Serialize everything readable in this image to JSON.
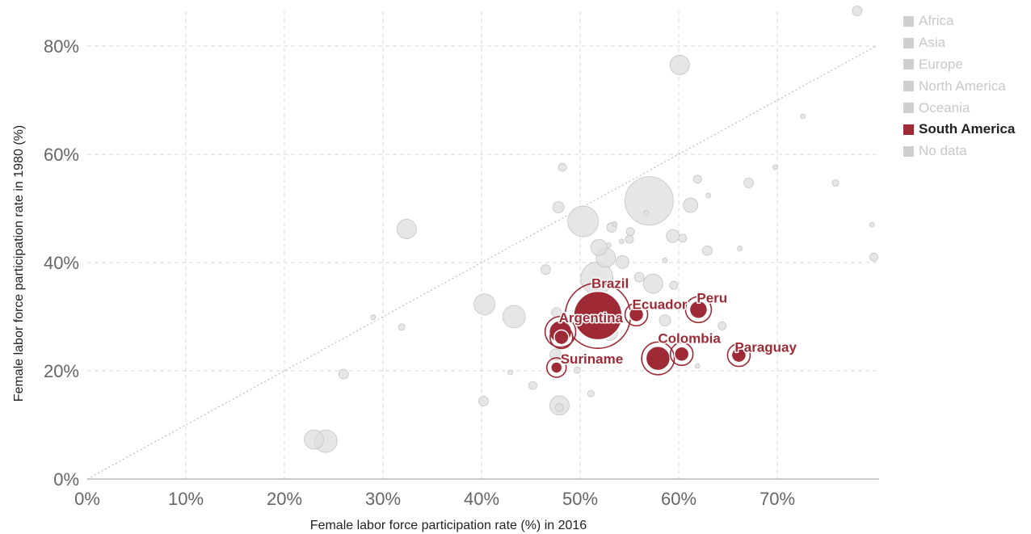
{
  "chart_data": {
    "type": "scatter",
    "xlabel": "Female labor force participation rate (%) in 2016",
    "ylabel": "Female labor force participation rate in 1980 (%)",
    "xlim": [
      0,
      80
    ],
    "ylim": [
      0,
      85
    ],
    "x_ticks": [
      0,
      10,
      20,
      30,
      40,
      50,
      60,
      70
    ],
    "x_tick_labels": [
      "0%",
      "10%",
      "20%",
      "30%",
      "40%",
      "50%",
      "60%",
      "70%"
    ],
    "y_ticks": [
      0,
      20,
      40,
      60,
      80
    ],
    "y_tick_labels": [
      "0%",
      "20%",
      "40%",
      "60%",
      "80%"
    ],
    "grid": true,
    "reference_line": "y = x",
    "legend": {
      "placement": "right",
      "items": [
        {
          "label": "Africa",
          "active": false
        },
        {
          "label": "Asia",
          "active": false
        },
        {
          "label": "Europe",
          "active": false
        },
        {
          "label": "North America",
          "active": false
        },
        {
          "label": "Oceania",
          "active": false
        },
        {
          "label": "South America",
          "active": true
        },
        {
          "label": "No data",
          "active": false
        }
      ]
    },
    "colors": {
      "highlight": "#9e2a35",
      "muted": "#dddddd"
    },
    "highlighted_series": {
      "name": "South America",
      "points": [
        {
          "label": "Brazil",
          "x": 51.8,
          "y": 30.2,
          "size": 30
        },
        {
          "label": "Argentina",
          "x": 48.0,
          "y": 27.2,
          "size": 14
        },
        {
          "label": "",
          "x": 48.1,
          "y": 26.2,
          "size": 9
        },
        {
          "label": "Ecuador",
          "x": 55.7,
          "y": 30.4,
          "size": 9
        },
        {
          "label": "Peru",
          "x": 62.0,
          "y": 31.3,
          "size": 11
        },
        {
          "label": "Colombia",
          "x": 57.9,
          "y": 22.3,
          "size": 15
        },
        {
          "label": "",
          "x": 60.3,
          "y": 23.1,
          "size": 9
        },
        {
          "label": "Paraguay",
          "x": 66.1,
          "y": 22.9,
          "size": 9
        },
        {
          "label": "Suriname",
          "x": 47.6,
          "y": 20.6,
          "size": 7
        }
      ]
    },
    "other_points": [
      {
        "x": 57.0,
        "y": 51.4,
        "size": 30
      },
      {
        "x": 50.3,
        "y": 47.6,
        "size": 19
      },
      {
        "x": 51.7,
        "y": 37.1,
        "size": 20
      },
      {
        "x": 52.6,
        "y": 40.9,
        "size": 12
      },
      {
        "x": 51.9,
        "y": 42.8,
        "size": 10
      },
      {
        "x": 57.4,
        "y": 36.1,
        "size": 12
      },
      {
        "x": 60.1,
        "y": 76.5,
        "size": 12
      },
      {
        "x": 32.4,
        "y": 46.2,
        "size": 12
      },
      {
        "x": 40.3,
        "y": 32.3,
        "size": 13
      },
      {
        "x": 43.3,
        "y": 30.0,
        "size": 14
      },
      {
        "x": 53.0,
        "y": 27.1,
        "size": 10
      },
      {
        "x": 47.9,
        "y": 13.6,
        "size": 12
      },
      {
        "x": 23.0,
        "y": 7.3,
        "size": 12
      },
      {
        "x": 24.2,
        "y": 7.0,
        "size": 14
      },
      {
        "x": 61.2,
        "y": 50.6,
        "size": 9
      },
      {
        "x": 59.4,
        "y": 44.9,
        "size": 8
      },
      {
        "x": 54.3,
        "y": 40.1,
        "size": 8
      },
      {
        "x": 47.8,
        "y": 50.2,
        "size": 7
      },
      {
        "x": 48.2,
        "y": 57.6,
        "size": 5
      },
      {
        "x": 53.2,
        "y": 46.5,
        "size": 6
      },
      {
        "x": 55.1,
        "y": 45.7,
        "size": 5
      },
      {
        "x": 55.0,
        "y": 44.3,
        "size": 5
      },
      {
        "x": 60.4,
        "y": 44.5,
        "size": 5
      },
      {
        "x": 62.9,
        "y": 42.2,
        "size": 6
      },
      {
        "x": 56.0,
        "y": 37.3,
        "size": 6
      },
      {
        "x": 59.5,
        "y": 35.8,
        "size": 5
      },
      {
        "x": 46.5,
        "y": 38.7,
        "size": 6
      },
      {
        "x": 58.6,
        "y": 29.3,
        "size": 7
      },
      {
        "x": 47.6,
        "y": 30.8,
        "size": 6
      },
      {
        "x": 47.5,
        "y": 23.0,
        "size": 7
      },
      {
        "x": 47.9,
        "y": 13.2,
        "size": 5
      },
      {
        "x": 64.4,
        "y": 28.3,
        "size": 5
      },
      {
        "x": 49.7,
        "y": 20.1,
        "size": 4
      },
      {
        "x": 45.2,
        "y": 17.3,
        "size": 5
      },
      {
        "x": 40.2,
        "y": 14.4,
        "size": 6
      },
      {
        "x": 26.0,
        "y": 19.4,
        "size": 6
      },
      {
        "x": 31.9,
        "y": 28.1,
        "size": 4
      },
      {
        "x": 29.0,
        "y": 29.9,
        "size": 3
      },
      {
        "x": 42.9,
        "y": 19.7,
        "size": 3
      },
      {
        "x": 51.1,
        "y": 15.8,
        "size": 4
      },
      {
        "x": 61.9,
        "y": 55.4,
        "size": 5
      },
      {
        "x": 63.0,
        "y": 52.4,
        "size": 3
      },
      {
        "x": 67.1,
        "y": 54.7,
        "size": 6
      },
      {
        "x": 69.8,
        "y": 57.6,
        "size": 3
      },
      {
        "x": 72.6,
        "y": 67.0,
        "size": 3
      },
      {
        "x": 75.9,
        "y": 54.7,
        "size": 4
      },
      {
        "x": 78.1,
        "y": 86.5,
        "size": 6
      },
      {
        "x": 79.6,
        "y": 47.0,
        "size": 3
      },
      {
        "x": 79.8,
        "y": 41.0,
        "size": 5
      },
      {
        "x": 66.2,
        "y": 42.6,
        "size": 3
      },
      {
        "x": 58.6,
        "y": 40.4,
        "size": 3
      },
      {
        "x": 61.9,
        "y": 20.9,
        "size": 3
      },
      {
        "x": 56.7,
        "y": 49.2,
        "size": 3
      },
      {
        "x": 53.5,
        "y": 47.1,
        "size": 3
      },
      {
        "x": 54.2,
        "y": 43.9,
        "size": 3
      },
      {
        "x": 52.9,
        "y": 43.2,
        "size": 3
      }
    ]
  }
}
